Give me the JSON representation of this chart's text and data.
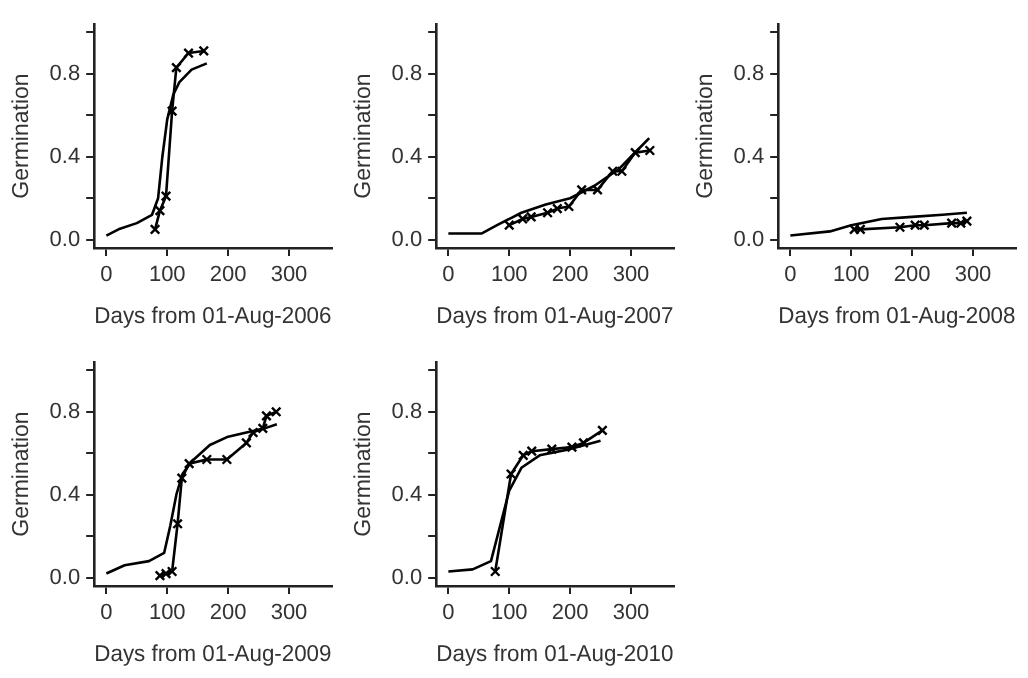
{
  "chart_data": [
    {
      "type": "line",
      "xlabel": "Days from 01-Aug-2006",
      "ylabel": "Germination",
      "xlim": [
        -20,
        370
      ],
      "xticks": [
        0,
        100,
        200,
        300
      ],
      "ylim": [
        -0.04,
        1.04
      ],
      "yticks": [
        {
          "value": 0,
          "label": "0.0"
        },
        {
          "value": 0.2,
          "label": null
        },
        {
          "value": 0.4,
          "label": "0.4"
        },
        {
          "value": 0.6,
          "label": null
        },
        {
          "value": 0.8,
          "label": "0.8"
        },
        {
          "value": 1,
          "label": null
        }
      ],
      "grid": false,
      "legend": false,
      "series": [
        {
          "type": "line",
          "marker": "cross",
          "color": "#000000",
          "x": [
            80,
            88,
            98,
            108,
            115,
            135,
            160
          ],
          "values": [
            0.05,
            0.14,
            0.21,
            0.62,
            0.83,
            0.9,
            0.91
          ]
        },
        {
          "type": "line",
          "marker": "none",
          "color": "#000000",
          "x": [
            0,
            20,
            50,
            75,
            85,
            92,
            100,
            110,
            120,
            140,
            165
          ],
          "values": [
            0.02,
            0.05,
            0.08,
            0.12,
            0.2,
            0.4,
            0.58,
            0.7,
            0.76,
            0.82,
            0.85
          ]
        }
      ]
    },
    {
      "type": "line",
      "xlabel": "Days from 01-Aug-2007",
      "ylabel": "Germination",
      "xlim": [
        -20,
        370
      ],
      "xticks": [
        0,
        100,
        200,
        300
      ],
      "ylim": [
        -0.04,
        1.04
      ],
      "yticks": [
        {
          "value": 0,
          "label": "0.0"
        },
        {
          "value": 0.2,
          "label": null
        },
        {
          "value": 0.4,
          "label": "0.4"
        },
        {
          "value": 0.6,
          "label": null
        },
        {
          "value": 0.8,
          "label": "0.8"
        },
        {
          "value": 1,
          "label": null
        }
      ],
      "grid": false,
      "legend": false,
      "series": [
        {
          "type": "line",
          "marker": "cross",
          "color": "#000000",
          "x": [
            100,
            122,
            136,
            163,
            179,
            198,
            219,
            245,
            270,
            285,
            307,
            331
          ],
          "values": [
            0.07,
            0.1,
            0.11,
            0.13,
            0.15,
            0.16,
            0.24,
            0.24,
            0.33,
            0.33,
            0.42,
            0.43
          ]
        },
        {
          "type": "line",
          "marker": "none",
          "color": "#000000",
          "x": [
            0,
            55,
            80,
            120,
            160,
            200,
            240,
            280,
            310,
            330
          ],
          "values": [
            0.03,
            0.03,
            0.07,
            0.13,
            0.17,
            0.2,
            0.26,
            0.34,
            0.43,
            0.49
          ]
        }
      ]
    },
    {
      "type": "line",
      "xlabel": "Days from 01-Aug-2008",
      "ylabel": "Germination",
      "xlim": [
        -20,
        370
      ],
      "xticks": [
        0,
        100,
        200,
        300
      ],
      "ylim": [
        -0.04,
        1.04
      ],
      "yticks": [
        {
          "value": 0,
          "label": "0.0"
        },
        {
          "value": 0.2,
          "label": null
        },
        {
          "value": 0.4,
          "label": "0.4"
        },
        {
          "value": 0.6,
          "label": null
        },
        {
          "value": 0.8,
          "label": "0.8"
        },
        {
          "value": 1,
          "label": null
        }
      ],
      "grid": false,
      "legend": false,
      "series": [
        {
          "type": "line",
          "marker": "cross",
          "color": "#000000",
          "x": [
            105,
            115,
            180,
            205,
            220,
            265,
            280,
            290
          ],
          "values": [
            0.05,
            0.05,
            0.06,
            0.07,
            0.07,
            0.08,
            0.08,
            0.09
          ]
        },
        {
          "type": "line",
          "marker": "none",
          "color": "#000000",
          "x": [
            0,
            65,
            100,
            150,
            200,
            250,
            290
          ],
          "values": [
            0.02,
            0.04,
            0.07,
            0.1,
            0.11,
            0.12,
            0.13
          ]
        }
      ]
    },
    {
      "type": "line",
      "xlabel": "Days from 01-Aug-2009",
      "ylabel": "Germination",
      "xlim": [
        -20,
        370
      ],
      "xticks": [
        0,
        100,
        200,
        300
      ],
      "ylim": [
        -0.04,
        1.04
      ],
      "yticks": [
        {
          "value": 0,
          "label": "0.0"
        },
        {
          "value": 0.2,
          "label": null
        },
        {
          "value": 0.4,
          "label": "0.4"
        },
        {
          "value": 0.6,
          "label": null
        },
        {
          "value": 0.8,
          "label": "0.8"
        },
        {
          "value": 1,
          "label": null
        }
      ],
      "grid": false,
      "legend": false,
      "series": [
        {
          "type": "line",
          "marker": "cross",
          "color": "#000000",
          "x": [
            88,
            98,
            108,
            117,
            124,
            136,
            165,
            198,
            230,
            241,
            257,
            263,
            279
          ],
          "values": [
            0.01,
            0.02,
            0.03,
            0.26,
            0.48,
            0.55,
            0.57,
            0.57,
            0.65,
            0.7,
            0.72,
            0.78,
            0.8
          ]
        },
        {
          "type": "line",
          "marker": "none",
          "color": "#000000",
          "x": [
            0,
            30,
            70,
            95,
            105,
            115,
            125,
            140,
            170,
            200,
            230,
            260,
            280
          ],
          "values": [
            0.02,
            0.06,
            0.08,
            0.12,
            0.25,
            0.4,
            0.5,
            0.56,
            0.64,
            0.68,
            0.7,
            0.72,
            0.74
          ]
        }
      ]
    },
    {
      "type": "line",
      "xlabel": "Days from 01-Aug-2010",
      "ylabel": "Germination",
      "xlim": [
        -20,
        370
      ],
      "xticks": [
        0,
        100,
        200,
        300
      ],
      "ylim": [
        -0.04,
        1.04
      ],
      "yticks": [
        {
          "value": 0,
          "label": "0.0"
        },
        {
          "value": 0.2,
          "label": null
        },
        {
          "value": 0.4,
          "label": "0.4"
        },
        {
          "value": 0.6,
          "label": null
        },
        {
          "value": 0.8,
          "label": "0.8"
        },
        {
          "value": 1,
          "label": null
        }
      ],
      "grid": false,
      "legend": false,
      "series": [
        {
          "type": "line",
          "marker": "cross",
          "color": "#000000",
          "x": [
            77,
            103,
            123,
            137,
            170,
            203,
            222,
            253
          ],
          "values": [
            0.03,
            0.5,
            0.59,
            0.61,
            0.62,
            0.63,
            0.65,
            0.71
          ]
        },
        {
          "type": "line",
          "marker": "none",
          "color": "#000000",
          "x": [
            0,
            40,
            70,
            85,
            100,
            120,
            150,
            200,
            250
          ],
          "values": [
            0.03,
            0.04,
            0.08,
            0.25,
            0.42,
            0.53,
            0.59,
            0.62,
            0.66
          ]
        }
      ]
    }
  ]
}
